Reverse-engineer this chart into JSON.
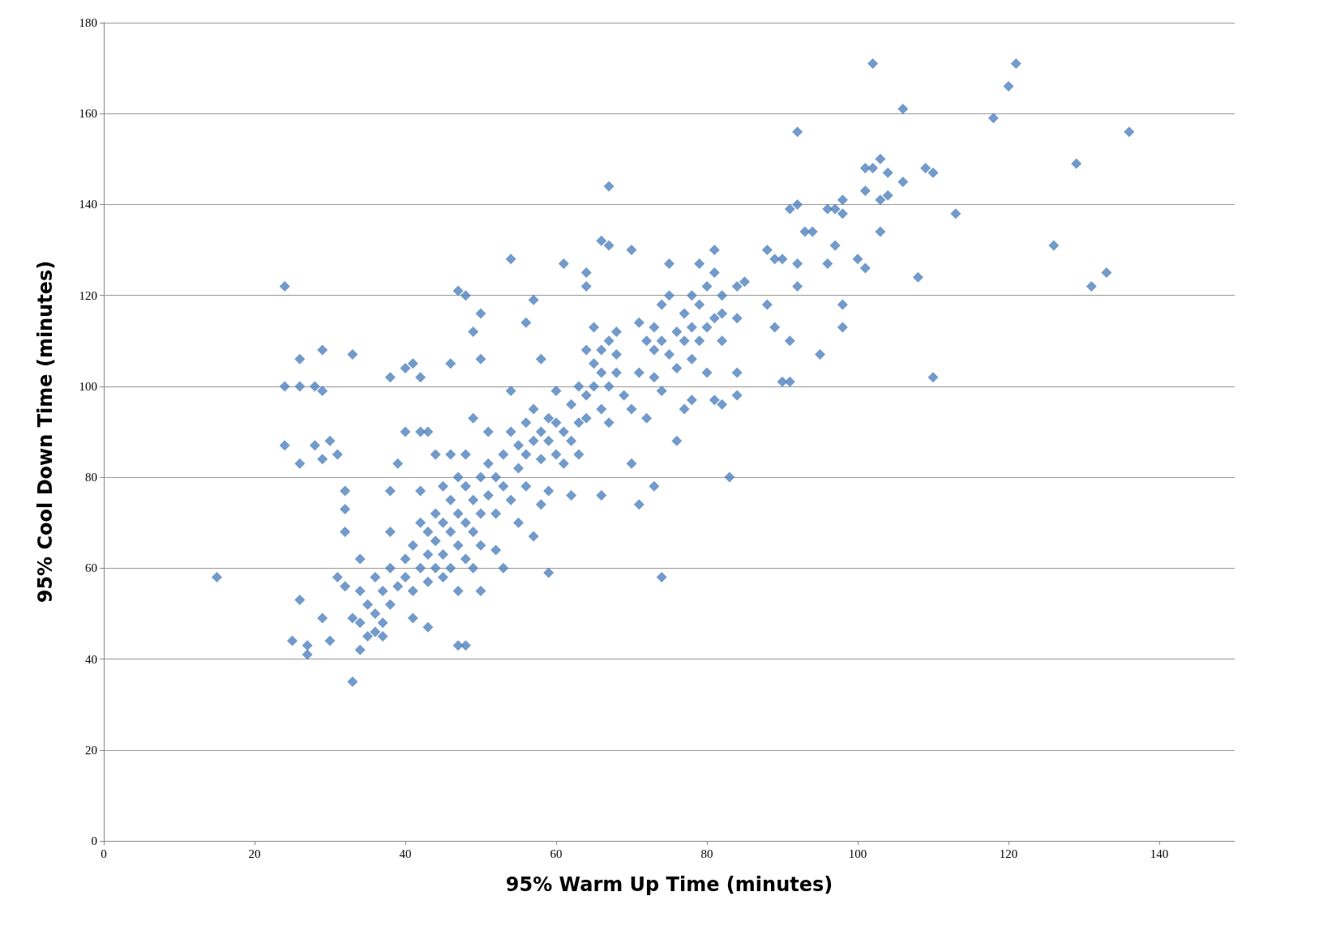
{
  "chart_data": {
    "type": "scatter",
    "xlabel": "95% Warm Up Time (minutes)",
    "ylabel": "95% Cool Down Time (minutes)",
    "xlim": [
      0,
      150
    ],
    "xticks": [
      0,
      20,
      40,
      60,
      80,
      100,
      120,
      140
    ],
    "ylim": [
      0,
      180
    ],
    "yticks": [
      0,
      20,
      40,
      60,
      80,
      100,
      120,
      140,
      160,
      180
    ],
    "grid": "y",
    "marker": "diamond",
    "series": [
      {
        "color": "#4f81bd",
        "x": [
          15,
          24,
          24,
          24,
          26,
          26,
          26,
          28,
          29,
          29,
          28,
          29,
          30,
          31,
          33,
          25,
          26,
          27,
          27,
          29,
          30,
          33,
          34,
          38,
          40,
          41,
          42,
          46,
          47,
          48,
          49,
          50,
          54,
          56,
          57,
          61,
          64,
          64,
          66,
          67,
          67,
          70,
          74,
          75,
          79,
          81,
          83,
          74,
          59,
          66,
          71,
          73,
          70,
          47,
          48,
          43,
          88,
          89,
          90,
          92,
          92,
          91,
          93,
          94,
          92,
          92,
          96,
          97,
          96,
          98,
          98,
          97,
          100,
          101,
          101,
          101,
          102,
          103,
          104,
          104,
          103,
          103,
          102,
          106,
          106,
          109,
          110,
          108,
          110,
          113,
          118,
          120,
          121,
          126,
          129,
          131,
          133,
          136,
          90,
          91,
          91,
          89,
          88,
          95,
          98,
          98,
          84,
          84,
          84,
          82,
          81,
          85,
          84,
          82,
          80,
          77,
          76,
          78,
          32,
          32,
          32,
          31,
          32,
          33,
          34,
          34,
          34,
          35,
          35,
          36,
          36,
          36,
          37,
          37,
          37,
          38,
          38,
          38,
          38,
          39,
          39,
          40,
          40,
          40,
          41,
          41,
          41,
          42,
          42,
          42,
          42,
          43,
          43,
          43,
          43,
          44,
          44,
          44,
          44,
          45,
          45,
          45,
          45,
          46,
          46,
          46,
          46,
          47,
          47,
          47,
          47,
          48,
          48,
          48,
          48,
          49,
          49,
          49,
          49,
          50,
          50,
          50,
          50,
          50,
          51,
          51,
          51,
          52,
          52,
          52,
          53,
          53,
          53,
          54,
          54,
          54,
          55,
          55,
          55,
          56,
          56,
          56,
          57,
          57,
          57,
          58,
          58,
          58,
          58,
          59,
          59,
          59,
          60,
          60,
          60,
          61,
          61,
          62,
          62,
          62,
          63,
          63,
          63,
          64,
          64,
          64,
          65,
          65,
          65,
          66,
          66,
          66,
          67,
          67,
          67,
          68,
          68,
          68,
          69,
          70,
          71,
          71,
          72,
          72,
          73,
          73,
          73,
          74,
          74,
          75,
          75,
          76,
          76,
          77,
          77,
          78,
          78,
          78,
          79,
          79,
          80,
          80,
          81,
          81,
          82,
          82
        ],
        "values": [
          58,
          122,
          100,
          87,
          106,
          100,
          83,
          100,
          99,
          108,
          87,
          84,
          88,
          85,
          107,
          44,
          53,
          43,
          41,
          49,
          44,
          35,
          42,
          102,
          104,
          105,
          102,
          105,
          121,
          120,
          112,
          116,
          128,
          114,
          119,
          127,
          125,
          122,
          132,
          131,
          144,
          130,
          118,
          127,
          127,
          130,
          80,
          58,
          59,
          76,
          74,
          78,
          83,
          43,
          43,
          47,
          130,
          128,
          128,
          156,
          140,
          139,
          134,
          134,
          127,
          122,
          127,
          131,
          139,
          141,
          138,
          139,
          128,
          126,
          148,
          143,
          148,
          150,
          147,
          142,
          141,
          134,
          171,
          161,
          145,
          148,
          147,
          124,
          102,
          138,
          159,
          166,
          171,
          131,
          149,
          122,
          125,
          156,
          101,
          101,
          110,
          113,
          118,
          107,
          118,
          113,
          115,
          103,
          98,
          96,
          97,
          123,
          122,
          120,
          103,
          95,
          88,
          106,
          77,
          73,
          68,
          58,
          56,
          49,
          62,
          55,
          48,
          52,
          45,
          58,
          50,
          46,
          55,
          48,
          45,
          52,
          60,
          68,
          77,
          83,
          56,
          62,
          58,
          90,
          65,
          55,
          49,
          60,
          70,
          77,
          90,
          63,
          68,
          57,
          90,
          66,
          72,
          85,
          60,
          63,
          70,
          58,
          78,
          68,
          60,
          75,
          85,
          65,
          72,
          80,
          55,
          70,
          62,
          78,
          85,
          68,
          75,
          60,
          93,
          72,
          80,
          65,
          55,
          106,
          76,
          83,
          90,
          72,
          80,
          64,
          85,
          78,
          60,
          90,
          75,
          99,
          87,
          82,
          70,
          92,
          85,
          78,
          88,
          95,
          67,
          84,
          90,
          74,
          106,
          88,
          93,
          77,
          92,
          85,
          99,
          90,
          83,
          96,
          88,
          76,
          92,
          100,
          85,
          98,
          108,
          93,
          100,
          105,
          113,
          103,
          108,
          95,
          100,
          110,
          92,
          103,
          112,
          107,
          98,
          95,
          103,
          114,
          93,
          110,
          113,
          108,
          102,
          110,
          99,
          107,
          120,
          112,
          104,
          116,
          110,
          120,
          113,
          97,
          118,
          110,
          122,
          113,
          125,
          115,
          110,
          116
        ]
      }
    ]
  }
}
